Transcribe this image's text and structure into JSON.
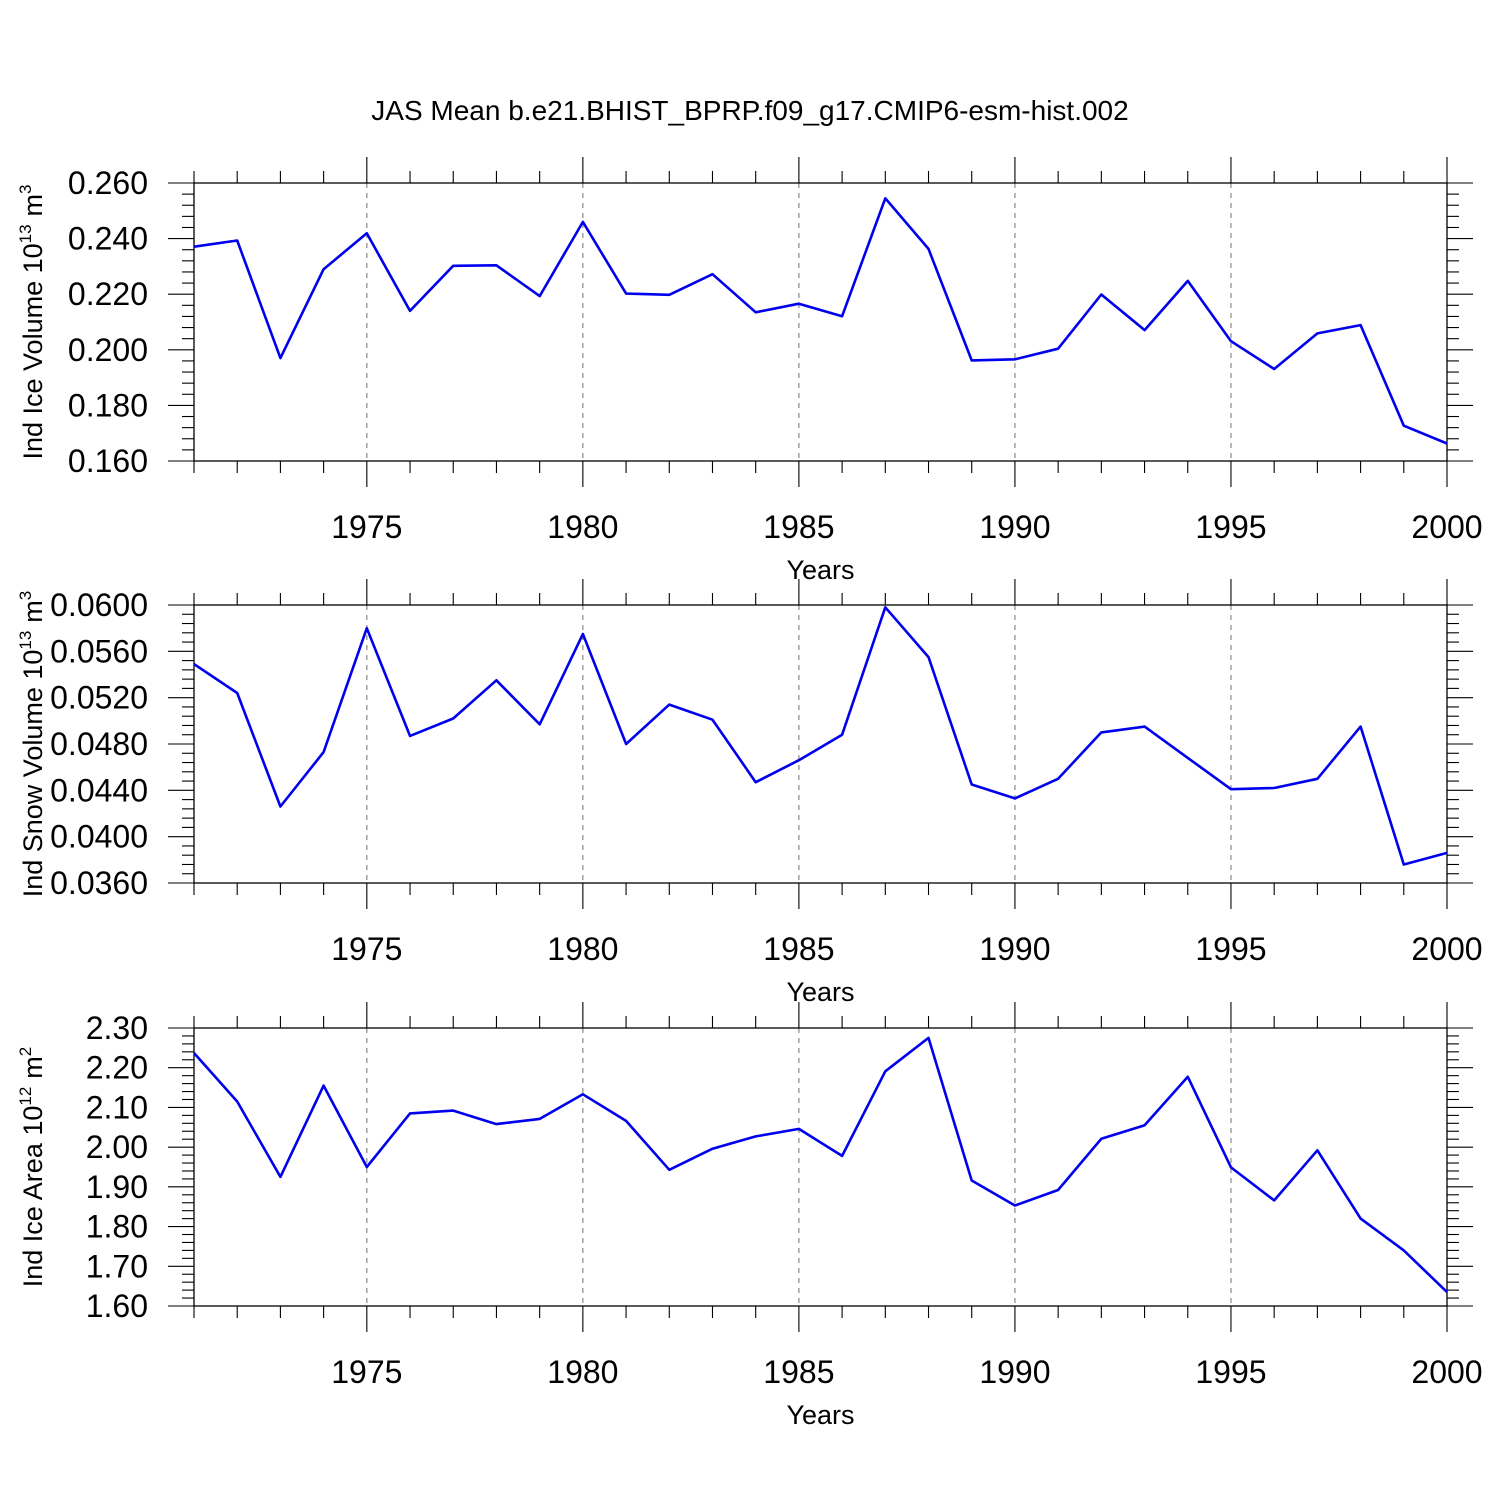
{
  "figure": {
    "title": "JAS Mean b.e21.BHIST_BPRP.f09_g17.CMIP6-esm-hist.002"
  },
  "colors": {
    "series": "#0000ee",
    "grid": "#888888",
    "axes": "#000000"
  },
  "chart_data": [
    {
      "type": "line",
      "ylabel_main": "Ind Ice Volume 10",
      "ylabel_exp": "13",
      "ylabel_unit": "m",
      "ylabel_unit_exp": "3",
      "xlabel": "Years",
      "xlim": [
        1971,
        2000
      ],
      "ylim": [
        0.16,
        0.26
      ],
      "xticks": [
        1975,
        1980,
        1985,
        1990,
        1995,
        2000
      ],
      "yticks": [
        0.16,
        0.18,
        0.2,
        0.22,
        0.24,
        0.26
      ],
      "ytick_labels": [
        "0.160",
        "0.180",
        "0.200",
        "0.220",
        "0.240",
        "0.260"
      ],
      "grid": "vertical dashed at major x ticks",
      "x": [
        1971,
        1972,
        1973,
        1974,
        1975,
        1976,
        1977,
        1978,
        1979,
        1980,
        1981,
        1982,
        1983,
        1984,
        1985,
        1986,
        1987,
        1988,
        1989,
        1990,
        1991,
        1992,
        1993,
        1994,
        1995,
        1996,
        1997,
        1998,
        1999,
        2000
      ],
      "values": [
        0.2371,
        0.2393,
        0.197,
        0.229,
        0.2419,
        0.214,
        0.2302,
        0.2304,
        0.2193,
        0.246,
        0.2202,
        0.2198,
        0.2272,
        0.2135,
        0.2166,
        0.2121,
        0.2545,
        0.2363,
        0.1962,
        0.1966,
        0.2004,
        0.2199,
        0.2071,
        0.2248,
        0.2031,
        0.1931,
        0.2059,
        0.2089,
        0.1727,
        0.1663
      ]
    },
    {
      "type": "line",
      "ylabel_main": "Ind Snow Volume 10",
      "ylabel_exp": "13",
      "ylabel_unit": "m",
      "ylabel_unit_exp": "3",
      "xlabel": "Years",
      "xlim": [
        1971,
        2000
      ],
      "ylim": [
        0.036,
        0.06
      ],
      "xticks": [
        1975,
        1980,
        1985,
        1990,
        1995,
        2000
      ],
      "yticks": [
        0.036,
        0.04,
        0.044,
        0.048,
        0.052,
        0.056,
        0.06
      ],
      "ytick_labels": [
        "0.0360",
        "0.0400",
        "0.0440",
        "0.0480",
        "0.0520",
        "0.0560",
        "0.0600"
      ],
      "grid": "vertical dashed at major x ticks",
      "x": [
        1971,
        1972,
        1973,
        1974,
        1975,
        1976,
        1977,
        1978,
        1979,
        1980,
        1981,
        1982,
        1983,
        1984,
        1985,
        1986,
        1987,
        1988,
        1989,
        1990,
        1991,
        1992,
        1993,
        1994,
        1995,
        1996,
        1997,
        1998,
        1999,
        2000
      ],
      "values": [
        0.0549,
        0.0524,
        0.0426,
        0.0473,
        0.058,
        0.0487,
        0.0502,
        0.0535,
        0.0497,
        0.0575,
        0.048,
        0.0514,
        0.0501,
        0.0447,
        0.0466,
        0.0488,
        0.0598,
        0.0555,
        0.0445,
        0.0433,
        0.045,
        0.049,
        0.0495,
        0.0468,
        0.0441,
        0.0442,
        0.045,
        0.0495,
        0.0376,
        0.0386
      ]
    },
    {
      "type": "line",
      "ylabel_main": "Ind Ice Area 10",
      "ylabel_exp": "12",
      "ylabel_unit": "m",
      "ylabel_unit_exp": "2",
      "xlabel": "Years",
      "xlim": [
        1971,
        2000
      ],
      "ylim": [
        1.6,
        2.3
      ],
      "xticks": [
        1975,
        1980,
        1985,
        1990,
        1995,
        2000
      ],
      "yticks": [
        1.6,
        1.7,
        1.8,
        1.9,
        2.0,
        2.1,
        2.2,
        2.3
      ],
      "ytick_labels": [
        "1.60",
        "1.70",
        "1.80",
        "1.90",
        "2.00",
        "2.10",
        "2.20",
        "2.30"
      ],
      "grid": "vertical dashed at major x ticks",
      "x": [
        1971,
        1972,
        1973,
        1974,
        1975,
        1976,
        1977,
        1978,
        1979,
        1980,
        1981,
        1982,
        1983,
        1984,
        1985,
        1986,
        1987,
        1988,
        1989,
        1990,
        1991,
        1992,
        1993,
        1994,
        1995,
        1996,
        1997,
        1998,
        1999,
        2000
      ],
      "values": [
        2.237,
        2.115,
        1.925,
        2.155,
        1.95,
        2.085,
        2.092,
        2.058,
        2.071,
        2.133,
        2.066,
        1.943,
        1.996,
        2.027,
        2.046,
        1.978,
        2.191,
        2.275,
        1.916,
        1.853,
        1.892,
        2.021,
        2.055,
        2.177,
        1.949,
        1.866,
        1.992,
        1.82,
        1.74,
        1.635
      ]
    }
  ]
}
